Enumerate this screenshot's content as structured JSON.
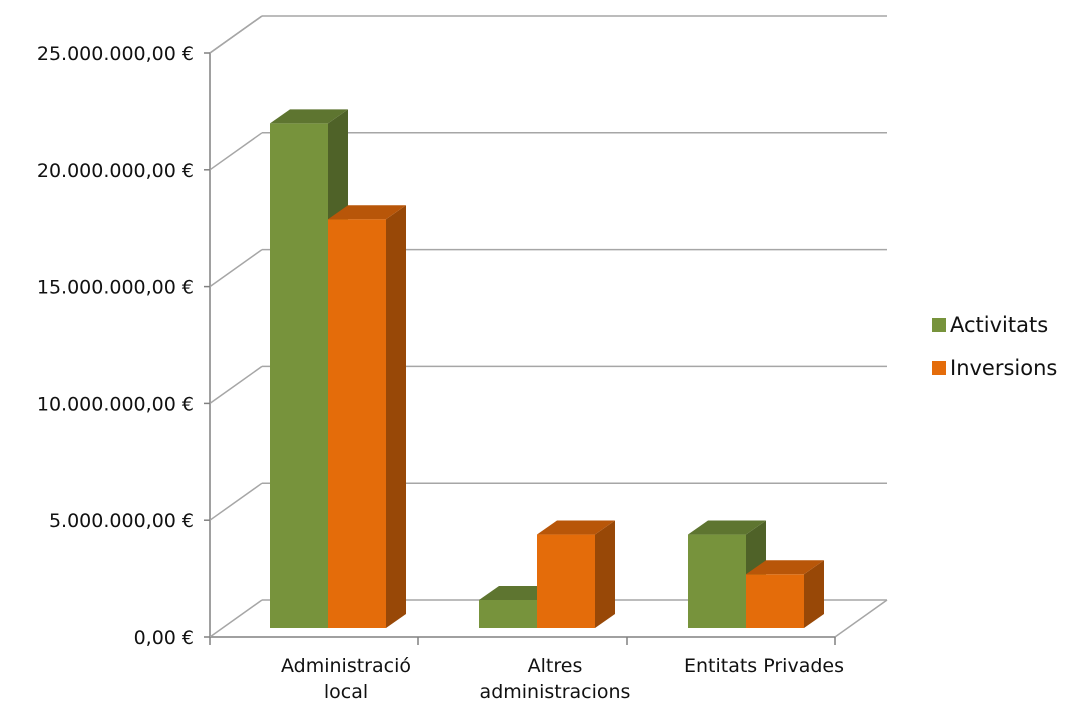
{
  "chart_data": {
    "type": "bar",
    "title": "",
    "xlabel": "",
    "ylabel": "",
    "categories": [
      [
        "Administració",
        "local"
      ],
      [
        "Altres",
        "administracions"
      ],
      [
        "Entitats Privades"
      ]
    ],
    "series": [
      {
        "name": "Activitats",
        "values": [
          21600000,
          1200000,
          4000000
        ]
      },
      {
        "name": "Inversions",
        "values": [
          17500000,
          4000000,
          2300000
        ]
      }
    ],
    "ylim": [
      0,
      25000000
    ],
    "yticks": [
      0,
      5000000,
      10000000,
      15000000,
      20000000,
      25000000
    ],
    "ytick_labels": [
      "0,00 €",
      "5.000.000,00 €",
      "10.000.000,00 €",
      "15.000.000,00 €",
      "20.000.000,00 €",
      "25.000.000,00 €"
    ],
    "grid": true,
    "legend_position": "right",
    "colors": {
      "Activitats": {
        "front": "#77933C",
        "top": "#5E7530",
        "side": "#4F6228"
      },
      "Inversions": {
        "front": "#E46C0A",
        "top": "#B85609",
        "side": "#984807"
      },
      "grid": "#A6A6A6",
      "axis": "#808080"
    }
  }
}
